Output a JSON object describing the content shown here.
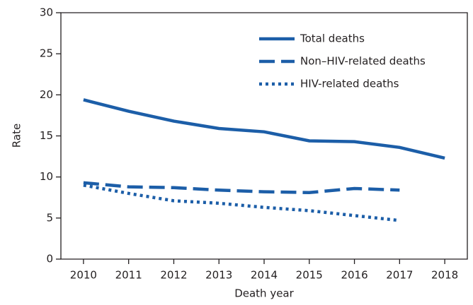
{
  "chart_data": {
    "type": "line",
    "x_label": "Death year",
    "y_label": "Rate",
    "x": [
      2010,
      2011,
      2012,
      2013,
      2014,
      2015,
      2016,
      2017,
      2018
    ],
    "xlim": [
      2009.5,
      2018.5
    ],
    "xticks": [
      2010,
      2011,
      2012,
      2013,
      2014,
      2015,
      2016,
      2017,
      2018
    ],
    "ylim": [
      0,
      30
    ],
    "yticks": [
      0,
      5,
      10,
      15,
      20,
      25,
      30
    ],
    "legend": "upper right",
    "series": [
      {
        "name": "Total deaths",
        "color": "#1c5ea8",
        "dash": "solid",
        "values": [
          19.4,
          18.0,
          16.8,
          15.9,
          15.5,
          14.4,
          14.3,
          13.6,
          12.3
        ]
      },
      {
        "name": "Non–HIV-related deaths",
        "color": "#1c5ea8",
        "dash": "dashed",
        "values": [
          9.3,
          8.8,
          8.7,
          8.4,
          8.2,
          8.1,
          8.6,
          8.4,
          null
        ]
      },
      {
        "name": "HIV-related deaths",
        "color": "#1c5ea8",
        "dash": "dotted",
        "values": [
          9.0,
          8.0,
          7.1,
          6.8,
          6.3,
          5.9,
          5.3,
          4.7,
          null
        ]
      }
    ]
  }
}
